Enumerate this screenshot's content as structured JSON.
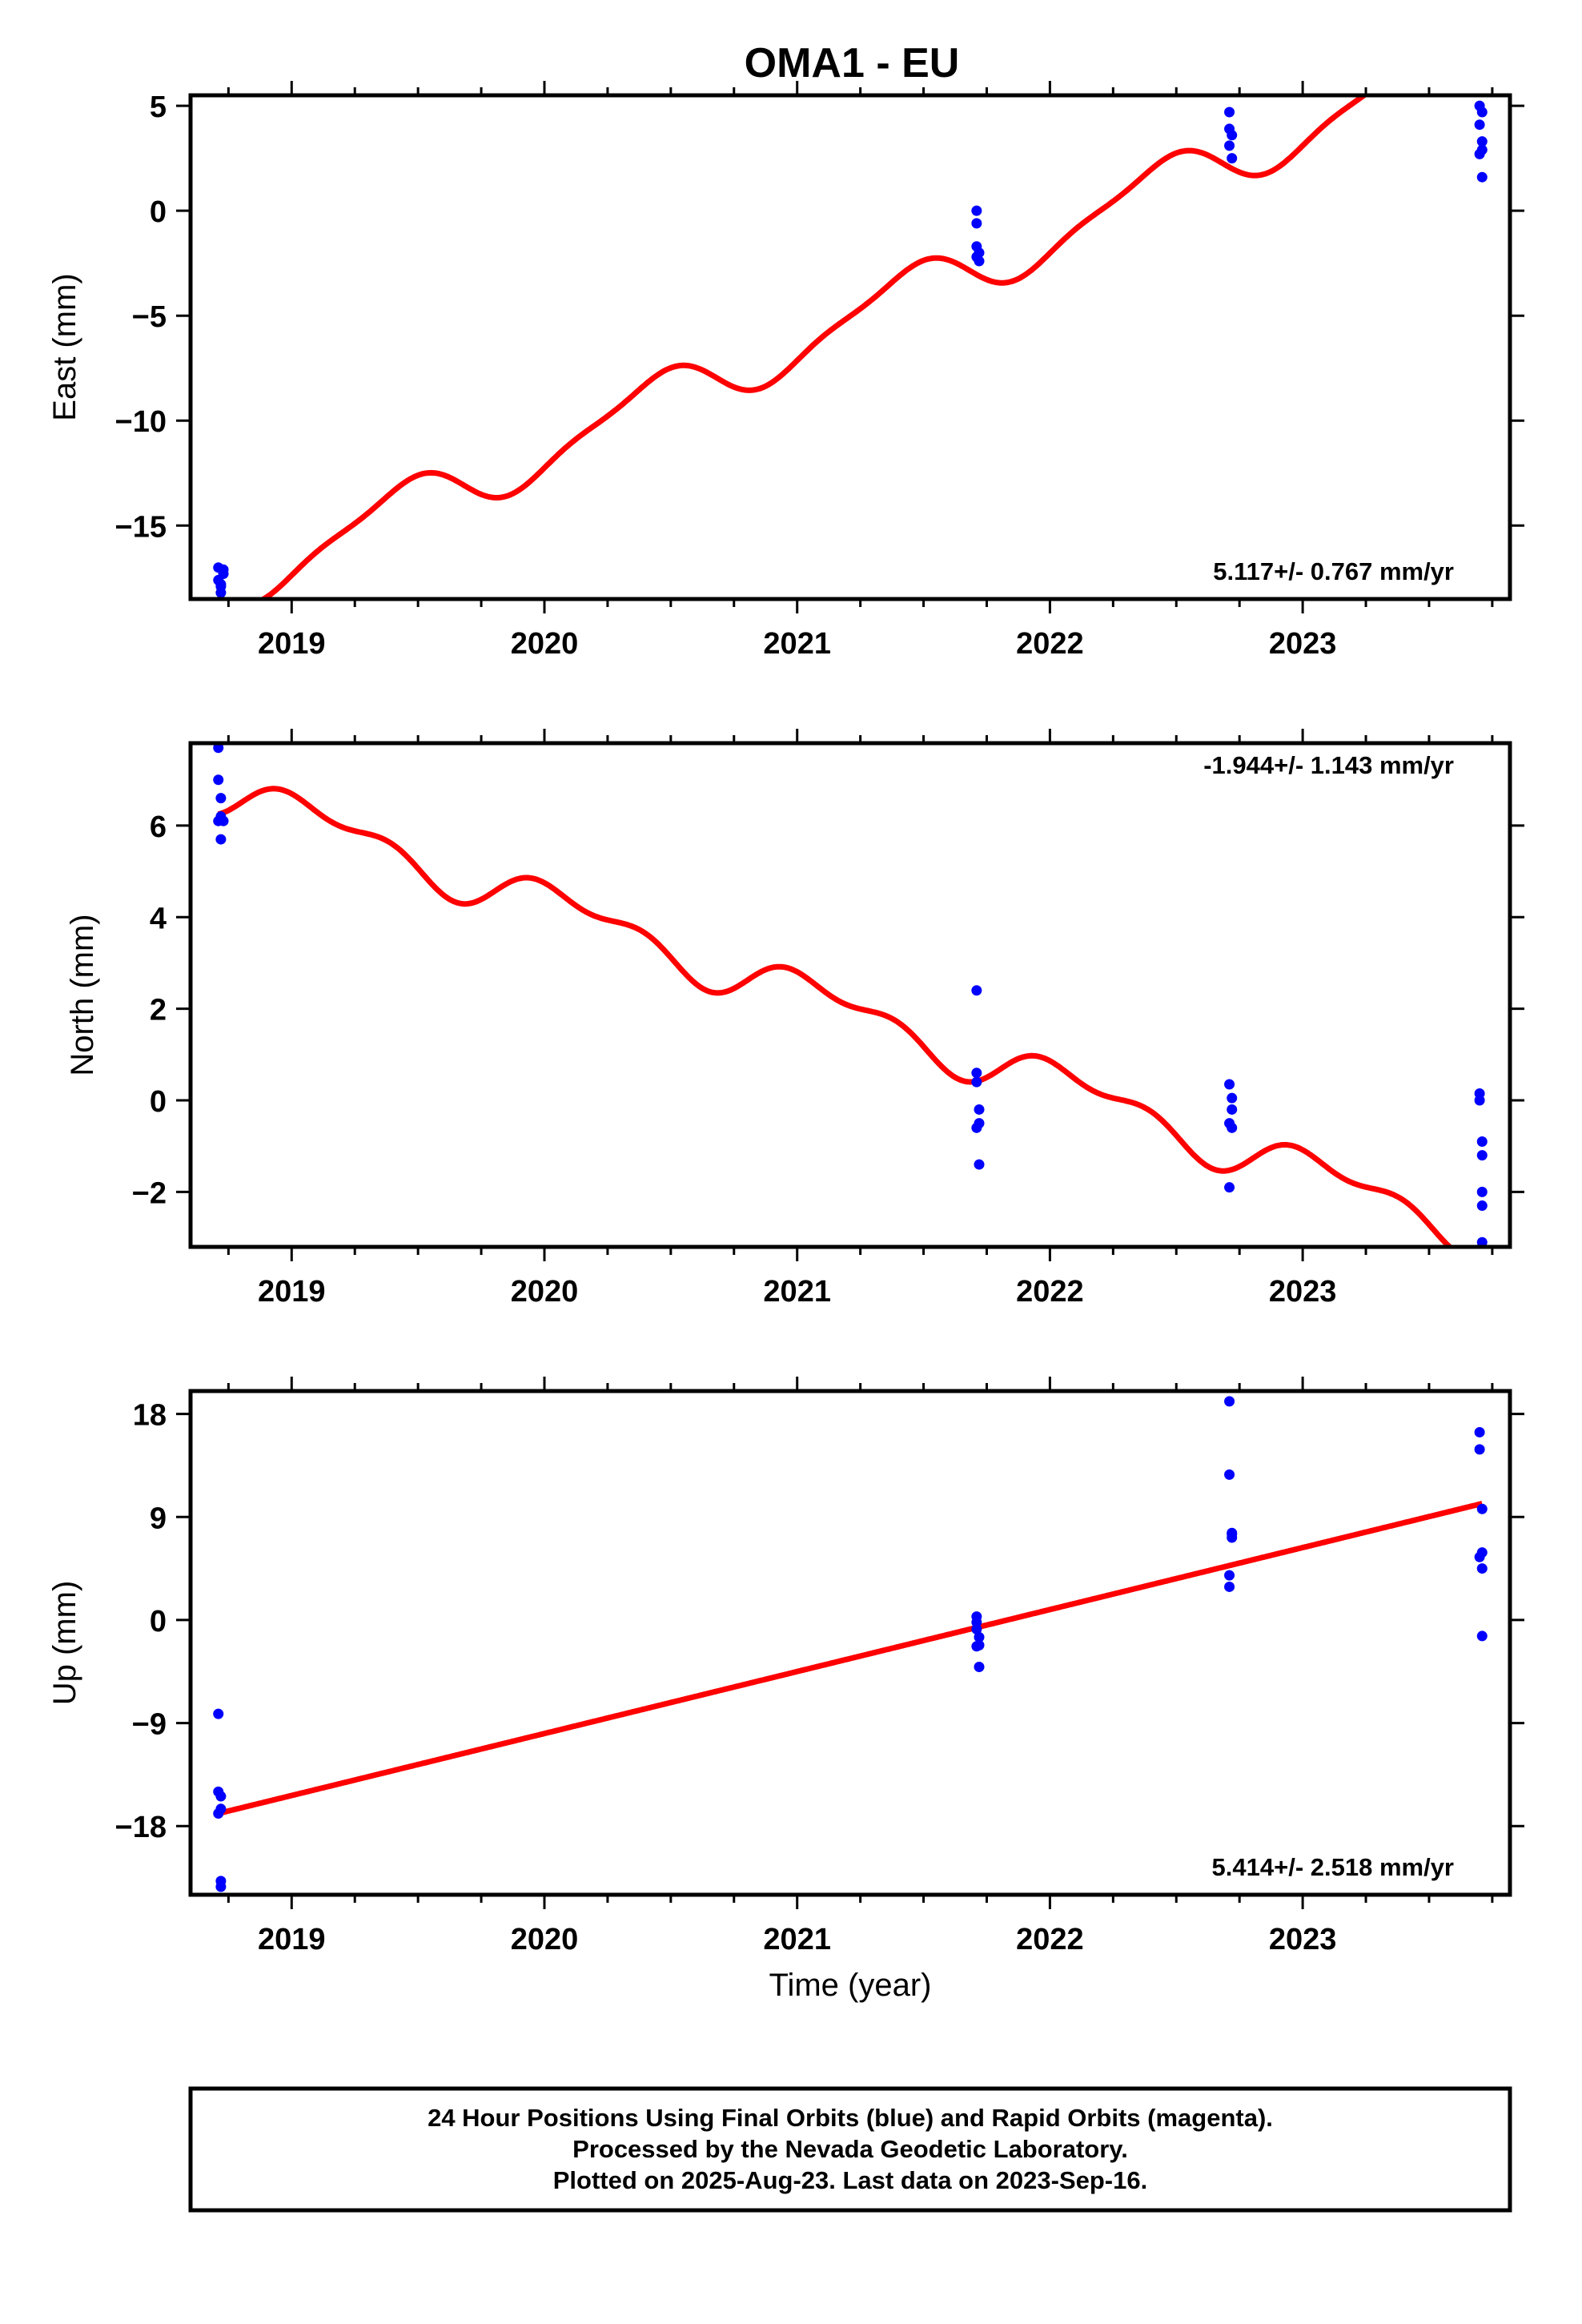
{
  "title": "OMA1 - EU",
  "colors": {
    "data_points": "#0000ff",
    "model_line": "#ff0000",
    "frame": "#000000"
  },
  "caption": {
    "line1": "24 Hour Positions Using Final Orbits (blue) and Rapid Orbits (magenta).",
    "line2": "Processed by the Nevada Geodetic Laboratory.",
    "line3": "Plotted on 2025-Aug-23. Last data on 2023-Sep-16."
  },
  "chart_data": [
    {
      "type": "scatter",
      "ylabel": "East (mm)",
      "xlabel": "",
      "xlim": [
        2018.6,
        2023.82
      ],
      "ylim": [
        -18.5,
        5.5
      ],
      "yticks": [
        -15,
        -10,
        -5,
        0,
        5
      ],
      "ytick_labels": [
        "−15",
        "−10",
        "−5",
        "0",
        "5"
      ],
      "xticks": [
        2019,
        2020,
        2021,
        2022,
        2023
      ],
      "xtick_labels": [
        "2019",
        "2020",
        "2021",
        "2022",
        "2023"
      ],
      "rate_label": "5.117+/- 0.767 mm/yr",
      "rate_label_position": "bottom-right",
      "points": {
        "x": [
          2018.71,
          2018.71,
          2018.72,
          2018.72,
          2018.73,
          2018.73,
          2018.72,
          2021.71,
          2021.71,
          2021.71,
          2021.72,
          2021.72,
          2021.71,
          2022.71,
          2022.71,
          2022.72,
          2022.72,
          2022.71,
          2023.7,
          2023.7,
          2023.71,
          2023.71,
          2023.71,
          2023.71,
          2023.7
        ],
        "y": [
          -17.0,
          -17.6,
          -17.9,
          -18.2,
          -17.3,
          -17.1,
          -17.8,
          0.0,
          -0.6,
          -1.7,
          -2.0,
          -2.4,
          -2.2,
          4.7,
          3.9,
          3.6,
          2.5,
          3.1,
          5.0,
          4.1,
          3.3,
          2.9,
          1.6,
          4.7,
          2.7
        ]
      },
      "model": {
        "trend": {
          "rate": 5.117,
          "intercept": -18.0,
          "t0": 2018.71
        },
        "annual": {
          "amplitude": 1.25,
          "phase": 5.2
        },
        "semiannual": {
          "amplitude": 0.35,
          "phase": 0.8
        },
        "t_start": 2018.71,
        "t_end": 2023.71
      }
    },
    {
      "type": "scatter",
      "ylabel": "North (mm)",
      "xlabel": "",
      "xlim": [
        2018.6,
        2023.82
      ],
      "ylim": [
        -3.2,
        7.8
      ],
      "yticks": [
        -2,
        0,
        2,
        4,
        6
      ],
      "ytick_labels": [
        "−2",
        "0",
        "2",
        "4",
        "6"
      ],
      "xticks": [
        2019,
        2020,
        2021,
        2022,
        2023
      ],
      "xtick_labels": [
        "2019",
        "2020",
        "2021",
        "2022",
        "2023"
      ],
      "rate_label": "-1.944+/- 1.143 mm/yr",
      "rate_label_position": "top-right",
      "points": {
        "x": [
          2018.71,
          2018.71,
          2018.72,
          2018.72,
          2018.73,
          2018.72,
          2018.71,
          2021.71,
          2021.71,
          2021.71,
          2021.72,
          2021.72,
          2021.71,
          2021.72,
          2022.71,
          2022.72,
          2022.72,
          2022.71,
          2022.72,
          2022.71,
          2023.7,
          2023.7,
          2023.71,
          2023.71,
          2023.71,
          2023.71,
          2023.71
        ],
        "y": [
          7.7,
          7.0,
          6.6,
          6.2,
          6.1,
          5.7,
          6.1,
          2.4,
          0.6,
          0.4,
          -0.2,
          -0.5,
          -0.6,
          -1.4,
          0.35,
          0.05,
          -0.2,
          -0.5,
          -0.6,
          -1.9,
          0.0,
          0.15,
          -0.9,
          -1.2,
          -2.0,
          -2.3,
          -3.1
        ]
      },
      "model": {
        "trend": {
          "rate": -1.944,
          "intercept": 6.8,
          "t0": 2018.71
        },
        "annual": {
          "amplitude": 0.42,
          "phase": 0.9
        },
        "semiannual": {
          "amplitude": 0.25,
          "phase": 2.6
        },
        "t_start": 2018.71,
        "t_end": 2023.71
      }
    },
    {
      "type": "scatter",
      "ylabel": "Up (mm)",
      "xlabel": "Time (year)",
      "xlim": [
        2018.6,
        2023.82
      ],
      "ylim": [
        -24,
        20
      ],
      "yticks": [
        -18,
        -9,
        0,
        9,
        18
      ],
      "ytick_labels": [
        "−18",
        "−9",
        "0",
        "9",
        "18"
      ],
      "xticks": [
        2019,
        2020,
        2021,
        2022,
        2023
      ],
      "xtick_labels": [
        "2019",
        "2020",
        "2021",
        "2022",
        "2023"
      ],
      "rate_label": "5.414+/- 2.518 mm/yr",
      "rate_label_position": "bottom-right",
      "points": {
        "x": [
          2018.71,
          2018.71,
          2018.72,
          2018.72,
          2018.71,
          2018.72,
          2018.72,
          2021.71,
          2021.71,
          2021.71,
          2021.72,
          2021.72,
          2021.71,
          2021.72,
          2022.71,
          2022.71,
          2022.72,
          2022.72,
          2022.71,
          2022.72,
          2022.71,
          2023.7,
          2023.7,
          2023.71,
          2023.71,
          2023.7,
          2023.71,
          2023.71
        ],
        "y": [
          -8.2,
          -15.0,
          -15.4,
          -16.5,
          -16.9,
          -22.8,
          -23.3,
          0.3,
          -0.2,
          -0.8,
          -1.5,
          -2.2,
          -2.3,
          -4.1,
          19.1,
          12.7,
          7.6,
          7.2,
          3.9,
          7.5,
          2.9,
          16.4,
          14.9,
          9.7,
          5.9,
          5.5,
          4.5,
          -1.4
        ]
      },
      "model": {
        "trend": {
          "rate": 5.414,
          "intercept": -16.9,
          "t0": 2018.71
        },
        "annual": {
          "amplitude": 0.0,
          "phase": 0.0
        },
        "semiannual": {
          "amplitude": 0.0,
          "phase": 0.0
        },
        "t_start": 2018.71,
        "t_end": 2023.71
      }
    }
  ]
}
